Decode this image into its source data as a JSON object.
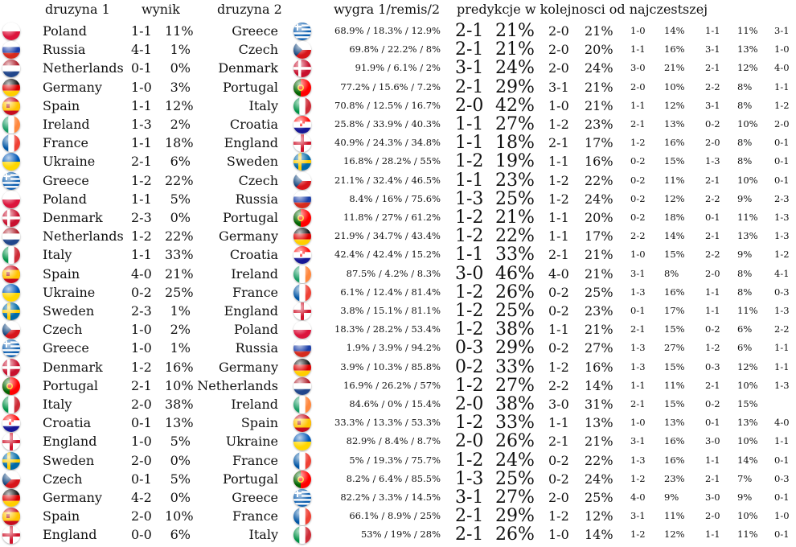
{
  "headers": {
    "team1": "druzyna 1",
    "score": "wynik",
    "team2": "druzyna 2",
    "probs": "wygra 1/remis/2",
    "predictions": "predykcje w kolejnosci od najczestszej"
  },
  "rows": [
    {
      "team1": "Poland",
      "flag1": "poland",
      "score": "1-1",
      "pct": "11%",
      "team2": "Greece",
      "flag2": "greece",
      "probs": "68.9% / 18.3% / 12.9%",
      "p1s": "2-1",
      "p1p": "21%",
      "p2s": "2-0",
      "p2p": "21%",
      "p3s": "1-0",
      "p3p": "14%",
      "p4s": "1-1",
      "p4p": "11%",
      "p5s": "3-1"
    },
    {
      "team1": "Russia",
      "flag1": "russia",
      "score": "4-1",
      "pct": "1%",
      "team2": "Czech",
      "flag2": "czech",
      "probs": "69.8% / 22.2% / 8%",
      "p1s": "2-1",
      "p1p": "21%",
      "p2s": "2-0",
      "p2p": "20%",
      "p3s": "1-1",
      "p3p": "16%",
      "p4s": "3-1",
      "p4p": "13%",
      "p5s": "1-0"
    },
    {
      "team1": "Netherlands",
      "flag1": "netherlands",
      "score": "0-1",
      "pct": "0%",
      "team2": "Denmark",
      "flag2": "denmark",
      "probs": "91.9% / 6.1% / 2%",
      "p1s": "3-1",
      "p1p": "24%",
      "p2s": "2-0",
      "p2p": "24%",
      "p3s": "3-0",
      "p3p": "21%",
      "p4s": "2-1",
      "p4p": "12%",
      "p5s": "4-0"
    },
    {
      "team1": "Germany",
      "flag1": "germany",
      "score": "1-0",
      "pct": "3%",
      "team2": "Portugal",
      "flag2": "portugal",
      "probs": "77.2% / 15.6% / 7.2%",
      "p1s": "2-1",
      "p1p": "29%",
      "p2s": "3-1",
      "p2p": "21%",
      "p3s": "2-0",
      "p3p": "10%",
      "p4s": "2-2",
      "p4p": "8%",
      "p5s": "1-1"
    },
    {
      "team1": "Spain",
      "flag1": "spain",
      "score": "1-1",
      "pct": "12%",
      "team2": "Italy",
      "flag2": "italy",
      "probs": "70.8% / 12.5% / 16.7%",
      "p1s": "2-0",
      "p1p": "42%",
      "p2s": "1-0",
      "p2p": "21%",
      "p3s": "1-1",
      "p3p": "12%",
      "p4s": "3-1",
      "p4p": "8%",
      "p5s": "1-2"
    },
    {
      "team1": "Ireland",
      "flag1": "ireland",
      "score": "1-3",
      "pct": "2%",
      "team2": "Croatia",
      "flag2": "croatia",
      "probs": "25.8% / 33.9% / 40.3%",
      "p1s": "1-1",
      "p1p": "27%",
      "p2s": "1-2",
      "p2p": "23%",
      "p3s": "2-1",
      "p3p": "13%",
      "p4s": "0-2",
      "p4p": "10%",
      "p5s": "2-0"
    },
    {
      "team1": "France",
      "flag1": "france",
      "score": "1-1",
      "pct": "18%",
      "team2": "England",
      "flag2": "england",
      "probs": "40.9% / 24.3% / 34.8%",
      "p1s": "1-1",
      "p1p": "18%",
      "p2s": "2-1",
      "p2p": "17%",
      "p3s": "1-2",
      "p3p": "16%",
      "p4s": "2-0",
      "p4p": "8%",
      "p5s": "0-1"
    },
    {
      "team1": "Ukraine",
      "flag1": "ukraine",
      "score": "2-1",
      "pct": "6%",
      "team2": "Sweden",
      "flag2": "sweden",
      "probs": "16.8% / 28.2% / 55%",
      "p1s": "1-2",
      "p1p": "19%",
      "p2s": "1-1",
      "p2p": "16%",
      "p3s": "0-2",
      "p3p": "15%",
      "p4s": "1-3",
      "p4p": "8%",
      "p5s": "0-1"
    },
    {
      "team1": "Greece",
      "flag1": "greece",
      "score": "1-2",
      "pct": "22%",
      "team2": "Czech",
      "flag2": "czech",
      "probs": "21.1% / 32.4% / 46.5%",
      "p1s": "1-1",
      "p1p": "23%",
      "p2s": "1-2",
      "p2p": "22%",
      "p3s": "0-2",
      "p3p": "11%",
      "p4s": "2-1",
      "p4p": "10%",
      "p5s": "0-1"
    },
    {
      "team1": "Poland",
      "flag1": "poland",
      "score": "1-1",
      "pct": "5%",
      "team2": "Russia",
      "flag2": "russia",
      "probs": "8.4% / 16% / 75.6%",
      "p1s": "1-3",
      "p1p": "25%",
      "p2s": "1-2",
      "p2p": "24%",
      "p3s": "0-2",
      "p3p": "12%",
      "p4s": "2-2",
      "p4p": "9%",
      "p5s": "2-3"
    },
    {
      "team1": "Denmark",
      "flag1": "denmark",
      "score": "2-3",
      "pct": "0%",
      "team2": "Portugal",
      "flag2": "portugal",
      "probs": "11.8% / 27% / 61.2%",
      "p1s": "1-2",
      "p1p": "21%",
      "p2s": "1-1",
      "p2p": "20%",
      "p3s": "0-2",
      "p3p": "18%",
      "p4s": "0-1",
      "p4p": "11%",
      "p5s": "1-3"
    },
    {
      "team1": "Netherlands",
      "flag1": "netherlands",
      "score": "1-2",
      "pct": "22%",
      "team2": "Germany",
      "flag2": "germany",
      "probs": "21.9% / 34.7% / 43.4%",
      "p1s": "1-2",
      "p1p": "22%",
      "p2s": "1-1",
      "p2p": "17%",
      "p3s": "2-2",
      "p3p": "14%",
      "p4s": "2-1",
      "p4p": "13%",
      "p5s": "1-3"
    },
    {
      "team1": "Italy",
      "flag1": "italy",
      "score": "1-1",
      "pct": "33%",
      "team2": "Croatia",
      "flag2": "croatia",
      "probs": "42.4% / 42.4% / 15.2%",
      "p1s": "1-1",
      "p1p": "33%",
      "p2s": "2-1",
      "p2p": "21%",
      "p3s": "1-0",
      "p3p": "15%",
      "p4s": "2-2",
      "p4p": "9%",
      "p5s": "1-2"
    },
    {
      "team1": "Spain",
      "flag1": "spain",
      "score": "4-0",
      "pct": "21%",
      "team2": "Ireland",
      "flag2": "ireland",
      "probs": "87.5% / 4.2% / 8.3%",
      "p1s": "3-0",
      "p1p": "46%",
      "p2s": "4-0",
      "p2p": "21%",
      "p3s": "3-1",
      "p3p": "8%",
      "p4s": "2-0",
      "p4p": "8%",
      "p5s": "4-1"
    },
    {
      "team1": "Ukraine",
      "flag1": "ukraine",
      "score": "0-2",
      "pct": "25%",
      "team2": "France",
      "flag2": "france",
      "probs": "6.1% / 12.4% / 81.4%",
      "p1s": "1-2",
      "p1p": "26%",
      "p2s": "0-2",
      "p2p": "25%",
      "p3s": "1-3",
      "p3p": "16%",
      "p4s": "1-1",
      "p4p": "8%",
      "p5s": "0-3"
    },
    {
      "team1": "Sweden",
      "flag1": "sweden",
      "score": "2-3",
      "pct": "1%",
      "team2": "England",
      "flag2": "england",
      "probs": "3.8% / 15.1% / 81.1%",
      "p1s": "1-2",
      "p1p": "25%",
      "p2s": "0-2",
      "p2p": "23%",
      "p3s": "0-1",
      "p3p": "17%",
      "p4s": "1-1",
      "p4p": "11%",
      "p5s": "1-3"
    },
    {
      "team1": "Czech",
      "flag1": "czech",
      "score": "1-0",
      "pct": "2%",
      "team2": "Poland",
      "flag2": "poland",
      "probs": "18.3% / 28.2% / 53.4%",
      "p1s": "1-2",
      "p1p": "38%",
      "p2s": "1-1",
      "p2p": "21%",
      "p3s": "2-1",
      "p3p": "15%",
      "p4s": "0-2",
      "p4p": "6%",
      "p5s": "2-2"
    },
    {
      "team1": "Greece",
      "flag1": "greece",
      "score": "1-0",
      "pct": "1%",
      "team2": "Russia",
      "flag2": "russia",
      "probs": "1.9% / 3.9% / 94.2%",
      "p1s": "0-3",
      "p1p": "29%",
      "p2s": "0-2",
      "p2p": "27%",
      "p3s": "1-3",
      "p3p": "27%",
      "p4s": "1-2",
      "p4p": "6%",
      "p5s": "1-1"
    },
    {
      "team1": "Denmark",
      "flag1": "denmark",
      "score": "1-2",
      "pct": "16%",
      "team2": "Germany",
      "flag2": "germany",
      "probs": "3.9% / 10.3% / 85.8%",
      "p1s": "0-2",
      "p1p": "33%",
      "p2s": "1-2",
      "p2p": "16%",
      "p3s": "1-3",
      "p3p": "15%",
      "p4s": "0-3",
      "p4p": "12%",
      "p5s": "1-1"
    },
    {
      "team1": "Portugal",
      "flag1": "portugal",
      "score": "2-1",
      "pct": "10%",
      "team2": "Netherlands",
      "flag2": "netherlands",
      "probs": "16.9% / 26.2% / 57%",
      "p1s": "1-2",
      "p1p": "27%",
      "p2s": "2-2",
      "p2p": "14%",
      "p3s": "1-1",
      "p3p": "11%",
      "p4s": "2-1",
      "p4p": "10%",
      "p5s": "1-3"
    },
    {
      "team1": "Italy",
      "flag1": "italy",
      "score": "2-0",
      "pct": "38%",
      "team2": "Ireland",
      "flag2": "ireland",
      "probs": "84.6% / 0% / 15.4%",
      "p1s": "2-0",
      "p1p": "38%",
      "p2s": "3-0",
      "p2p": "31%",
      "p3s": "2-1",
      "p3p": "15%",
      "p4s": "0-2",
      "p4p": "15%",
      "p5s": ""
    },
    {
      "team1": "Croatia",
      "flag1": "croatia",
      "score": "0-1",
      "pct": "13%",
      "team2": "Spain",
      "flag2": "spain",
      "probs": "33.3% / 13.3% / 53.3%",
      "p1s": "1-2",
      "p1p": "33%",
      "p2s": "1-1",
      "p2p": "13%",
      "p3s": "1-0",
      "p3p": "13%",
      "p4s": "0-1",
      "p4p": "13%",
      "p5s": "4-0"
    },
    {
      "team1": "England",
      "flag1": "england",
      "score": "1-0",
      "pct": "5%",
      "team2": "Ukraine",
      "flag2": "ukraine",
      "probs": "82.9% / 8.4% / 8.7%",
      "p1s": "2-0",
      "p1p": "26%",
      "p2s": "2-1",
      "p2p": "21%",
      "p3s": "3-1",
      "p3p": "16%",
      "p4s": "3-0",
      "p4p": "10%",
      "p5s": "1-1"
    },
    {
      "team1": "Sweden",
      "flag1": "sweden",
      "score": "2-0",
      "pct": "0%",
      "team2": "France",
      "flag2": "france",
      "probs": "5% / 19.3% / 75.7%",
      "p1s": "1-2",
      "p1p": "24%",
      "p2s": "0-2",
      "p2p": "22%",
      "p3s": "1-3",
      "p3p": "16%",
      "p4s": "1-1",
      "p4p": "14%",
      "p5s": "0-1"
    },
    {
      "team1": "Czech",
      "flag1": "czech",
      "score": "0-1",
      "pct": "5%",
      "team2": "Portugal",
      "flag2": "portugal",
      "probs": "8.2% / 6.4% / 85.5%",
      "p1s": "1-3",
      "p1p": "25%",
      "p2s": "0-2",
      "p2p": "24%",
      "p3s": "1-2",
      "p3p": "23%",
      "p4s": "2-1",
      "p4p": "7%",
      "p5s": "0-3"
    },
    {
      "team1": "Germany",
      "flag1": "germany",
      "score": "4-2",
      "pct": "0%",
      "team2": "Greece",
      "flag2": "greece",
      "probs": "82.2% / 3.3% / 14.5%",
      "p1s": "3-1",
      "p1p": "27%",
      "p2s": "2-0",
      "p2p": "25%",
      "p3s": "4-0",
      "p3p": "9%",
      "p4s": "3-0",
      "p4p": "9%",
      "p5s": "0-1"
    },
    {
      "team1": "Spain",
      "flag1": "spain",
      "score": "2-0",
      "pct": "10%",
      "team2": "France",
      "flag2": "france",
      "probs": "66.1% / 8.9% / 25%",
      "p1s": "2-1",
      "p1p": "29%",
      "p2s": "1-2",
      "p2p": "12%",
      "p3s": "3-1",
      "p3p": "11%",
      "p4s": "2-0",
      "p4p": "10%",
      "p5s": "1-0"
    },
    {
      "team1": "England",
      "flag1": "england",
      "score": "0-0",
      "pct": "6%",
      "team2": "Italy",
      "flag2": "italy",
      "probs": "53% / 19% / 28%",
      "p1s": "2-1",
      "p1p": "26%",
      "p2s": "1-0",
      "p2p": "14%",
      "p3s": "1-2",
      "p3p": "12%",
      "p4s": "1-1",
      "p4p": "11%",
      "p5s": "0-1"
    }
  ]
}
